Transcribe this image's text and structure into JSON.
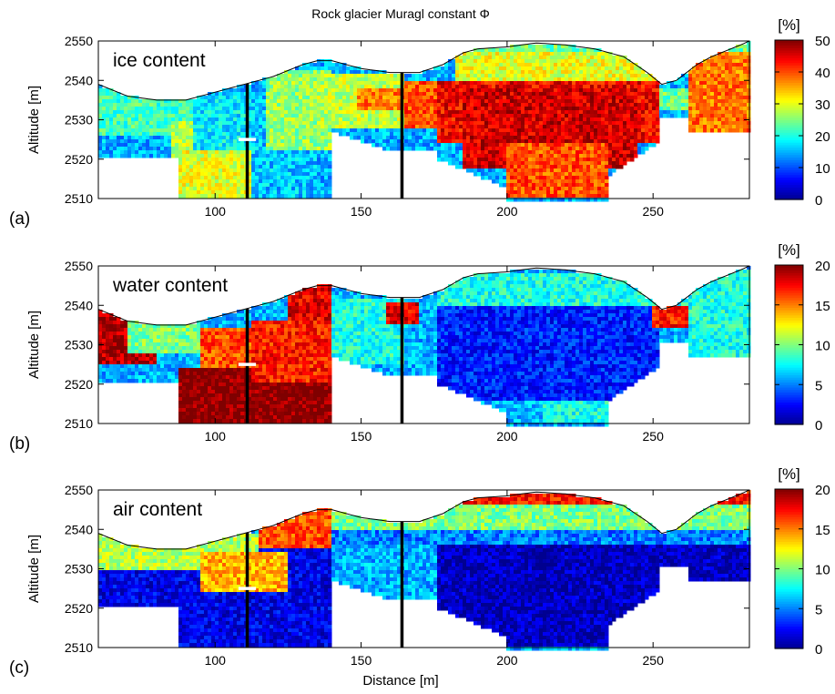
{
  "title": "Rock glacier Muragl constant Φ",
  "xlabel": "Distance [m]",
  "colors": {
    "jet": [
      "#00008f",
      "#0000ff",
      "#007fff",
      "#00ffff",
      "#7fff7f",
      "#ffff00",
      "#ff7f00",
      "#ff0000",
      "#7f0000"
    ],
    "axis": "#000000",
    "borehole": "#000000",
    "marker": "#ffffff"
  },
  "chart_data": [
    {
      "type": "heatmap",
      "panel_tag": "(a)",
      "panel_label": "ice content",
      "ylabel": "Altitude [m]",
      "unit_label": "[%]",
      "xlim": [
        60,
        283
      ],
      "ylim": [
        2510,
        2550
      ],
      "xticks": [
        100,
        150,
        200,
        250
      ],
      "yticks": [
        2510,
        2520,
        2530,
        2540,
        2550
      ],
      "colorbar_range": [
        0,
        50
      ],
      "colorbar_ticks": [
        0,
        10,
        20,
        30,
        40,
        50
      ],
      "surface": {
        "x": [
          60,
          70,
          80,
          90,
          100,
          110,
          120,
          130,
          135,
          140,
          150,
          160,
          170,
          178,
          185,
          190,
          200,
          210,
          220,
          230,
          240,
          248,
          253,
          258,
          265,
          270,
          280,
          283
        ],
        "y": [
          2539,
          2536,
          2535,
          2535,
          2537,
          2539,
          2541,
          2544,
          2545,
          2545,
          2543,
          2542,
          2542,
          2544,
          2547,
          2548,
          2548.5,
          2549.5,
          2549,
          2548,
          2546,
          2542,
          2539,
          2540,
          2544,
          2546,
          2549,
          2550
        ]
      },
      "boreholes": [
        111,
        164
      ],
      "marker": {
        "x": [
          108,
          114
        ],
        "y": 2525
      },
      "zones": [
        {
          "x": [
            60,
            92
          ],
          "top": 2538,
          "bottom": 2526,
          "value": 22
        },
        {
          "x": [
            85,
            100
          ],
          "top": 2530,
          "bottom": 2518,
          "value": 28
        },
        {
          "x": [
            88,
            112
          ],
          "top": 2522,
          "bottom": 2510,
          "value": 30
        },
        {
          "x": [
            92,
            112
          ],
          "top": 2536,
          "bottom": 2522,
          "value": 18
        },
        {
          "x": [
            112,
            135
          ],
          "top": 2536,
          "bottom": 2510,
          "value": 16
        },
        {
          "x": [
            118,
            140
          ],
          "top": 2543,
          "bottom": 2522,
          "value": 26
        },
        {
          "x": [
            135,
            165
          ],
          "top": 2542,
          "bottom": 2528,
          "value": 28
        },
        {
          "x": [
            148,
            168
          ],
          "top": 2538,
          "bottom": 2532,
          "value": 38
        },
        {
          "x": [
            165,
            178
          ],
          "top": 2540,
          "bottom": 2528,
          "value": 40
        },
        {
          "x": [
            176,
            252
          ],
          "top": 2540,
          "bottom": 2524,
          "value": 44
        },
        {
          "x": [
            185,
            245
          ],
          "top": 2538,
          "bottom": 2518,
          "value": 46
        },
        {
          "x": [
            200,
            235
          ],
          "top": 2524,
          "bottom": 2510,
          "value": 40
        },
        {
          "x": [
            182,
            255
          ],
          "top": 2547,
          "bottom": 2540,
          "value": 30
        },
        {
          "x": [
            252,
            262
          ],
          "top": 2538,
          "bottom": 2532,
          "value": 24
        },
        {
          "x": [
            262,
            283
          ],
          "top": 2548,
          "bottom": 2526,
          "value": 38
        },
        {
          "x": [
            60,
            283
          ],
          "top": 2551,
          "bottom": 2547,
          "value": 24
        }
      ]
    },
    {
      "type": "heatmap",
      "panel_tag": "(b)",
      "panel_label": "water content",
      "ylabel": "Altitude [m]",
      "unit_label": "[%]",
      "xlim": [
        60,
        283
      ],
      "ylim": [
        2510,
        2550
      ],
      "xticks": [
        100,
        150,
        200,
        250
      ],
      "yticks": [
        2510,
        2520,
        2530,
        2540,
        2550
      ],
      "colorbar_range": [
        0,
        20
      ],
      "colorbar_ticks": [
        0,
        5,
        10,
        15,
        20
      ],
      "surface": {
        "x": [
          60,
          70,
          80,
          90,
          100,
          110,
          120,
          130,
          135,
          140,
          150,
          160,
          170,
          178,
          185,
          190,
          200,
          210,
          220,
          230,
          240,
          248,
          253,
          258,
          265,
          270,
          280,
          283
        ],
        "y": [
          2539,
          2536,
          2535,
          2535,
          2537,
          2539,
          2541,
          2544,
          2545,
          2545,
          2543,
          2542,
          2542,
          2544,
          2547,
          2548,
          2548.5,
          2549.5,
          2549,
          2548,
          2546,
          2542,
          2539,
          2540,
          2544,
          2546,
          2549,
          2550
        ]
      },
      "boreholes": [
        111,
        164
      ],
      "marker": {
        "x": [
          108,
          114
        ],
        "y": 2525
      },
      "zones": [
        {
          "x": [
            60,
            80
          ],
          "top": 2539,
          "bottom": 2525,
          "value": 19
        },
        {
          "x": [
            70,
            95
          ],
          "top": 2536,
          "bottom": 2528,
          "value": 10
        },
        {
          "x": [
            88,
            140
          ],
          "top": 2524,
          "bottom": 2510,
          "value": 20
        },
        {
          "x": [
            95,
            112
          ],
          "top": 2534,
          "bottom": 2524,
          "value": 16
        },
        {
          "x": [
            112,
            140
          ],
          "top": 2536,
          "bottom": 2520,
          "value": 17
        },
        {
          "x": [
            125,
            140
          ],
          "top": 2545,
          "bottom": 2536,
          "value": 18
        },
        {
          "x": [
            140,
            165
          ],
          "top": 2542,
          "bottom": 2525,
          "value": 8
        },
        {
          "x": [
            158,
            170
          ],
          "top": 2541,
          "bottom": 2535,
          "value": 18
        },
        {
          "x": [
            176,
            252
          ],
          "top": 2540,
          "bottom": 2516,
          "value": 3
        },
        {
          "x": [
            212,
            252
          ],
          "top": 2516,
          "bottom": 2510,
          "value": 8
        },
        {
          "x": [
            176,
            262
          ],
          "top": 2548,
          "bottom": 2540,
          "value": 8
        },
        {
          "x": [
            250,
            262
          ],
          "top": 2540,
          "bottom": 2534,
          "value": 17
        },
        {
          "x": [
            262,
            283
          ],
          "top": 2549,
          "bottom": 2526,
          "value": 8
        }
      ]
    },
    {
      "type": "heatmap",
      "panel_tag": "(c)",
      "panel_label": "air content",
      "ylabel": "Altitude [m]",
      "unit_label": "[%]",
      "xlabel": "Distance [m]",
      "xlim": [
        60,
        283
      ],
      "ylim": [
        2510,
        2550
      ],
      "xticks": [
        100,
        150,
        200,
        250
      ],
      "yticks": [
        2510,
        2520,
        2530,
        2540,
        2550
      ],
      "colorbar_range": [
        0,
        20
      ],
      "colorbar_ticks": [
        0,
        5,
        10,
        15,
        20
      ],
      "surface": {
        "x": [
          60,
          70,
          80,
          90,
          100,
          110,
          120,
          130,
          135,
          140,
          150,
          160,
          170,
          178,
          185,
          190,
          200,
          210,
          220,
          230,
          240,
          248,
          253,
          258,
          265,
          270,
          280,
          283
        ],
        "y": [
          2539,
          2536,
          2535,
          2535,
          2537,
          2539,
          2541,
          2544,
          2545,
          2545,
          2543,
          2542,
          2542,
          2544,
          2547,
          2548,
          2548.5,
          2549.5,
          2549,
          2548,
          2546,
          2542,
          2539,
          2540,
          2544,
          2546,
          2549,
          2550
        ]
      },
      "boreholes": [
        111,
        164
      ],
      "marker": {
        "x": [
          108,
          114
        ],
        "y": 2525
      },
      "zones": [
        {
          "x": [
            60,
            140
          ],
          "top": 2535,
          "bottom": 2510,
          "value": 2
        },
        {
          "x": [
            60,
            115
          ],
          "top": 2539,
          "bottom": 2530,
          "value": 11
        },
        {
          "x": [
            95,
            125
          ],
          "top": 2534,
          "bottom": 2524,
          "value": 14
        },
        {
          "x": [
            115,
            140
          ],
          "top": 2545,
          "bottom": 2535,
          "value": 16
        },
        {
          "x": [
            140,
            283
          ],
          "top": 2548,
          "bottom": 2540,
          "value": 10
        },
        {
          "x": [
            140,
            283
          ],
          "top": 2540,
          "bottom": 2536,
          "value": 5
        },
        {
          "x": [
            176,
            283
          ],
          "top": 2536,
          "bottom": 2510,
          "value": 1
        },
        {
          "x": [
            60,
            283
          ],
          "top": 2551,
          "bottom": 2546,
          "value": 17
        }
      ]
    }
  ]
}
